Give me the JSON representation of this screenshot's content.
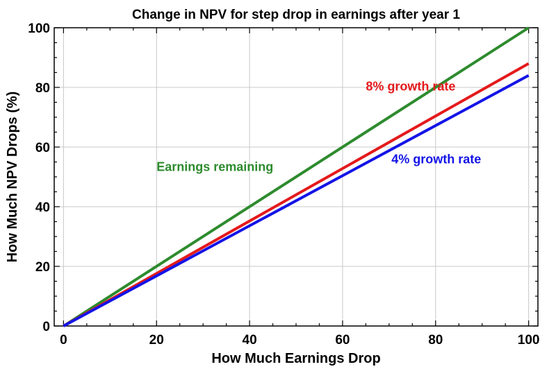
{
  "chart_data": {
    "type": "line",
    "title": "Change in NPV for step drop in earnings after year 1",
    "xlabel": "How Much Earnings Drop",
    "ylabel": "How Much NPV Drops (%)",
    "xlim": [
      -2,
      102
    ],
    "ylim": [
      0,
      100
    ],
    "xticks": [
      0,
      20,
      40,
      60,
      80,
      100
    ],
    "yticks": [
      0,
      20,
      40,
      60,
      80,
      100
    ],
    "grid": true,
    "legend": "none",
    "series": [
      {
        "name": "Earnings remaining",
        "color": "#2e8b2e",
        "x": [
          0,
          100
        ],
        "y": [
          0,
          100
        ]
      },
      {
        "name": "8% growth rate",
        "color": "#e41a1c",
        "x": [
          0,
          100
        ],
        "y": [
          0,
          88
        ]
      },
      {
        "name": "4% growth rate",
        "color": "#1414e6",
        "x": [
          0,
          100
        ],
        "y": [
          0,
          84
        ]
      }
    ],
    "annotations": [
      {
        "text": "Earnings remaining",
        "x": 20,
        "y": 52,
        "color": "#2e8b2e"
      },
      {
        "text": "8% growth rate",
        "x": 65,
        "y": 79,
        "color": "#e41a1c"
      },
      {
        "text": "4% growth rate",
        "x": 70.5,
        "y": 54.5,
        "color": "#1414e6"
      }
    ]
  }
}
